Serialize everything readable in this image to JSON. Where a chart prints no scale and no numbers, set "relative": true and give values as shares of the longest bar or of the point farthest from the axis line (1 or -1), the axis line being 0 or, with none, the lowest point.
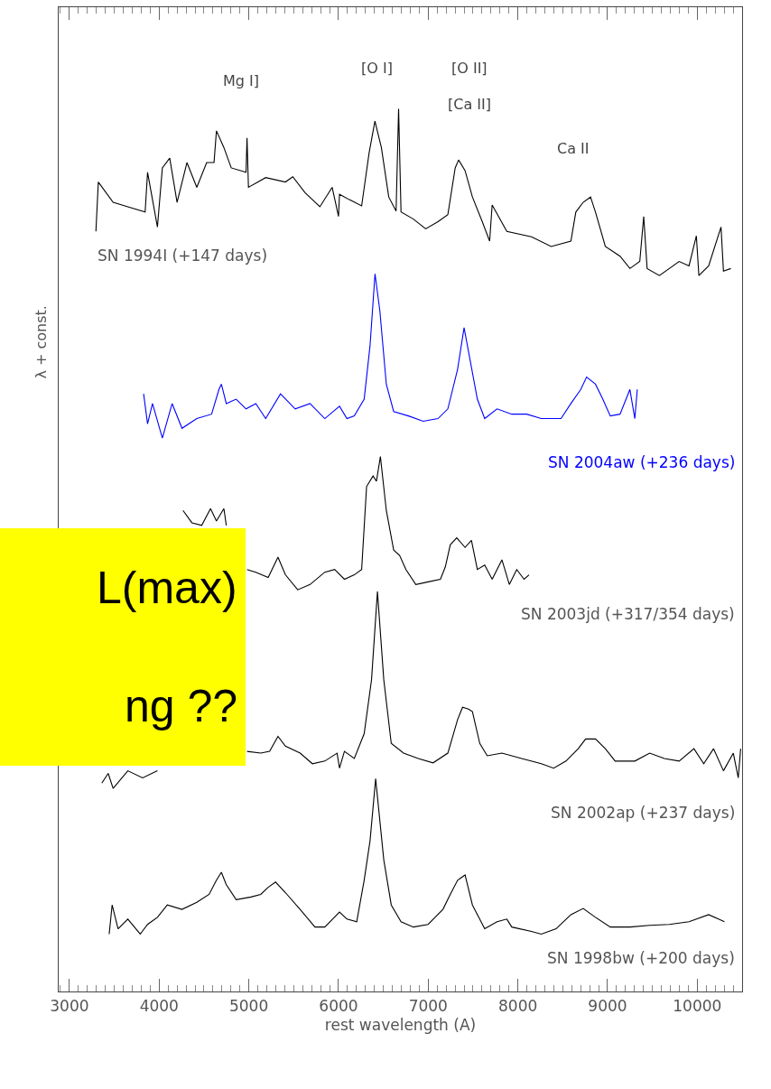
{
  "chart_data": {
    "type": "line",
    "relative": true,
    "xlabel": "rest wavelength (A)",
    "ylabel": "λ + const.",
    "xlim": [
      2880,
      10500
    ],
    "xticks": [
      3000,
      4000,
      5000,
      6000,
      7000,
      8000,
      9000,
      10000
    ],
    "legend": false,
    "line_style": "solid",
    "series": [
      {
        "name": "SN 1994I (+147 days)",
        "color": "#000000",
        "x": [
          3295,
          3322,
          3487,
          3651,
          3844,
          3871,
          3981,
          4036,
          4118,
          4200,
          4310,
          4420,
          4530,
          4612,
          4639,
          4722,
          4804,
          4969,
          4980,
          4996,
          5188,
          5408,
          5490,
          5627,
          5792,
          5929,
          6000,
          6011,
          6121,
          6258,
          6341,
          6406,
          6478,
          6560,
          6642,
          6670,
          6697,
          6835,
          6972,
          7109,
          7219,
          7301,
          7339,
          7411,
          7493,
          7603,
          7685,
          7713,
          7877,
          8152,
          8371,
          8591,
          8646,
          8728,
          8810,
          8865,
          8975,
          9139,
          9249,
          9359,
          9403,
          9441,
          9578,
          9798,
          9908,
          9990,
          10018,
          10127,
          10265,
          10292,
          10374
        ],
        "values": [
          0.861,
          0.917,
          0.894,
          0.889,
          0.883,
          0.928,
          0.866,
          0.933,
          0.944,
          0.894,
          0.939,
          0.911,
          0.939,
          0.939,
          0.975,
          0.956,
          0.933,
          0.928,
          0.967,
          0.911,
          0.922,
          0.917,
          0.923,
          0.905,
          0.889,
          0.911,
          0.878,
          0.903,
          0.897,
          0.89,
          0.95,
          0.986,
          0.956,
          0.9,
          0.884,
          1.0,
          0.883,
          0.875,
          0.864,
          0.872,
          0.88,
          0.933,
          0.942,
          0.93,
          0.9,
          0.872,
          0.85,
          0.891,
          0.861,
          0.855,
          0.844,
          0.85,
          0.883,
          0.894,
          0.9,
          0.883,
          0.844,
          0.833,
          0.819,
          0.827,
          0.878,
          0.819,
          0.811,
          0.827,
          0.822,
          0.856,
          0.811,
          0.822,
          0.866,
          0.816,
          0.819
        ]
      },
      {
        "name": "SN 2004aw (+236 days)",
        "color": "#0000ff",
        "x": [
          3827,
          3871,
          3926,
          4036,
          4145,
          4255,
          4420,
          4585,
          4667,
          4694,
          4749,
          4859,
          4969,
          5078,
          5188,
          5353,
          5517,
          5682,
          5847,
          6011,
          6094,
          6176,
          6286,
          6352,
          6407,
          6461,
          6533,
          6615,
          6780,
          6944,
          7109,
          7219,
          7328,
          7400,
          7466,
          7548,
          7630,
          7768,
          7932,
          8097,
          8261,
          8481,
          8591,
          8701,
          8766,
          8865,
          8947,
          9030,
          9139,
          9249,
          9304,
          9331
        ],
        "values": [
          0.677,
          0.643,
          0.666,
          0.627,
          0.666,
          0.638,
          0.649,
          0.654,
          0.682,
          0.688,
          0.666,
          0.671,
          0.66,
          0.666,
          0.649,
          0.677,
          0.66,
          0.666,
          0.649,
          0.663,
          0.649,
          0.652,
          0.671,
          0.732,
          0.813,
          0.771,
          0.688,
          0.657,
          0.652,
          0.646,
          0.649,
          0.66,
          0.705,
          0.752,
          0.716,
          0.671,
          0.649,
          0.66,
          0.654,
          0.654,
          0.649,
          0.649,
          0.666,
          0.682,
          0.696,
          0.688,
          0.671,
          0.652,
          0.654,
          0.682,
          0.649,
          0.682
        ]
      },
      {
        "name": "SN 2003jd (+317/354 days)",
        "color": "#000000",
        "x": [
          4266,
          4365,
          4475,
          4573,
          4639,
          4722,
          4749,
          4800,
          4980,
          5078,
          5216,
          5325,
          5408,
          5545,
          5682,
          5847,
          5957,
          6066,
          6176,
          6258,
          6313,
          6385,
          6423,
          6467,
          6533,
          6615,
          6681,
          6752,
          6862,
          6999,
          7136,
          7191,
          7246,
          7318,
          7411,
          7482,
          7548,
          7630,
          7713,
          7822,
          7905,
          7987,
          8069,
          8124
        ],
        "values": [
          0.545,
          0.531,
          0.528,
          0.547,
          0.533,
          0.547,
          0.528,
          null,
          0.478,
          0.475,
          0.469,
          0.492,
          0.472,
          0.455,
          0.461,
          0.475,
          0.478,
          0.467,
          0.472,
          0.478,
          0.572,
          0.584,
          0.578,
          0.606,
          0.545,
          0.5,
          0.494,
          0.478,
          0.461,
          0.464,
          0.467,
          0.481,
          0.506,
          0.514,
          0.503,
          0.511,
          0.478,
          0.483,
          0.467,
          0.489,
          0.461,
          0.478,
          0.467,
          0.472
        ]
      },
      {
        "name": "SN 2002ap (+237 days)",
        "color": "#000000",
        "x": [
          3361,
          3432,
          3487,
          3651,
          3816,
          3981,
          4100,
          4980,
          5133,
          5232,
          5325,
          5408,
          5572,
          5709,
          5847,
          5984,
          6011,
          6066,
          6176,
          6286,
          6368,
          6434,
          6505,
          6588,
          6725,
          6889,
          7054,
          7219,
          7328,
          7383,
          7449,
          7493,
          7575,
          7658,
          7822,
          8042,
          8261,
          8399,
          8536,
          8673,
          8755,
          8865,
          8975,
          9085,
          9304,
          9469,
          9633,
          9798,
          9963,
          10072,
          10182,
          10292,
          10402,
          10457,
          10484
        ],
        "values": [
          0.236,
          0.247,
          0.23,
          0.25,
          0.242,
          0.25,
          null,
          0.272,
          0.27,
          0.272,
          0.289,
          0.278,
          0.27,
          0.258,
          0.261,
          0.27,
          0.253,
          0.272,
          0.264,
          0.292,
          0.353,
          0.453,
          0.353,
          0.281,
          0.27,
          0.264,
          0.259,
          0.27,
          0.308,
          0.322,
          0.32,
          0.317,
          0.281,
          0.267,
          0.27,
          0.264,
          0.258,
          0.253,
          0.261,
          0.275,
          0.286,
          0.286,
          0.275,
          0.261,
          0.261,
          0.27,
          0.264,
          0.261,
          0.275,
          0.258,
          0.275,
          0.25,
          0.27,
          0.242,
          0.275
        ]
      },
      {
        "name": "SN 1998bw (+200 days)",
        "color": "#000000",
        "x": [
          3443,
          3476,
          3542,
          3651,
          3789,
          3871,
          3981,
          4091,
          4255,
          4420,
          4557,
          4639,
          4694,
          4749,
          4859,
          5024,
          5133,
          5216,
          5298,
          5408,
          5572,
          5737,
          5847,
          6011,
          6094,
          6203,
          6286,
          6352,
          6414,
          6505,
          6588,
          6697,
          6835,
          6999,
          7164,
          7246,
          7328,
          7411,
          7493,
          7630,
          7768,
          7877,
          7932,
          8152,
          8261,
          8426,
          8591,
          8728,
          8865,
          9030,
          9249,
          9469,
          9688,
          9908,
          10127,
          10237,
          10303
        ],
        "values": [
          0.065,
          0.098,
          0.071,
          0.082,
          0.065,
          0.076,
          0.084,
          0.098,
          0.093,
          0.101,
          0.11,
          0.126,
          0.135,
          0.121,
          0.104,
          0.107,
          0.11,
          0.118,
          0.124,
          0.112,
          0.093,
          0.073,
          0.073,
          0.09,
          0.082,
          0.079,
          0.126,
          0.171,
          0.241,
          0.149,
          0.098,
          0.079,
          0.073,
          0.076,
          0.093,
          0.11,
          0.126,
          0.132,
          0.098,
          0.071,
          0.079,
          0.082,
          0.073,
          0.068,
          0.065,
          0.071,
          0.087,
          0.094,
          0.084,
          0.073,
          0.073,
          0.075,
          0.076,
          0.079,
          0.087,
          0.082,
          0.079
        ]
      }
    ],
    "annotations": [
      "Mg I]",
      "[O I]",
      "[O II]",
      "[Ca II]",
      "Ca II",
      "L(max)",
      "ng ??"
    ]
  }
}
